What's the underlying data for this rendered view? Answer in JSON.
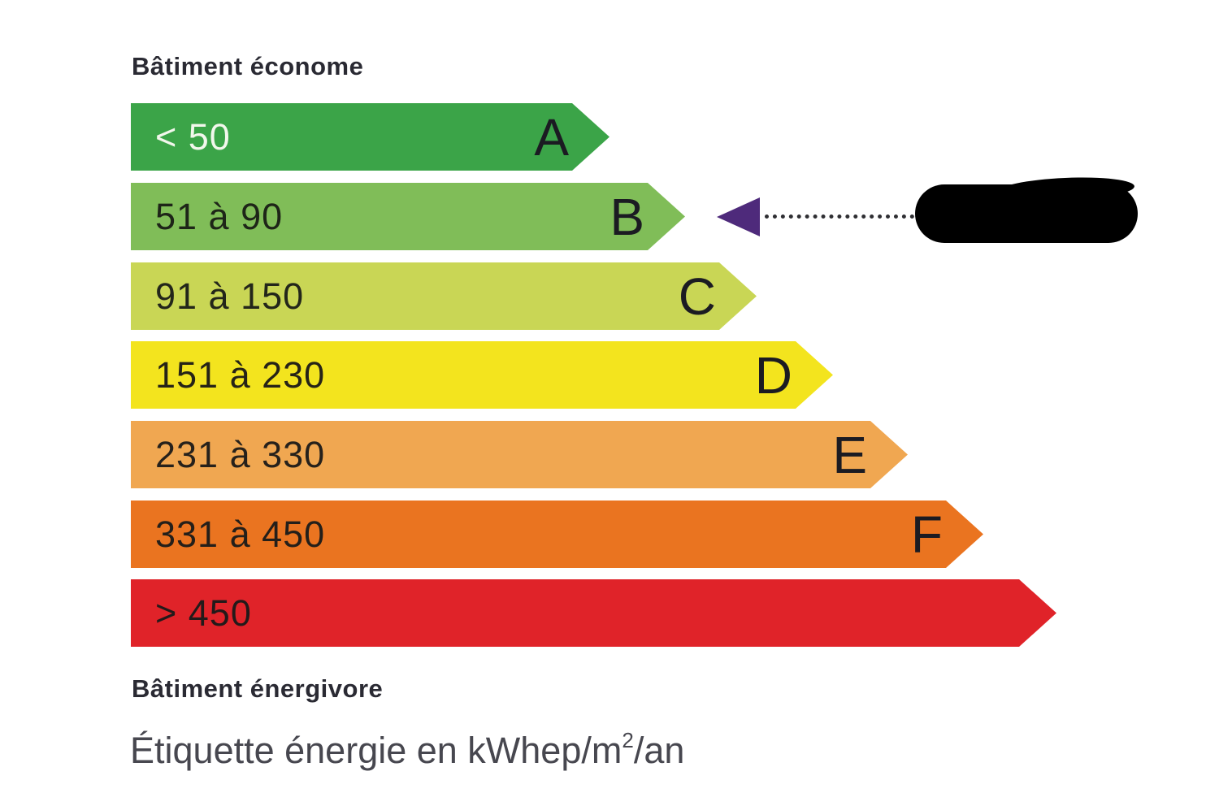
{
  "labels": {
    "top": "Bâtiment économe",
    "bottom": "Bâtiment énergivore",
    "caption_prefix": "Étiquette énergie en kWhep/m",
    "caption_sup": "2",
    "caption_suffix": "/an"
  },
  "scale": {
    "bars": [
      {
        "letter": "A",
        "range": "< 50",
        "color": "#3BA448",
        "text_color": "#F2F7EC"
      },
      {
        "letter": "B",
        "range": "51 à 90",
        "color": "#80BD58",
        "text_color": "#1E2518"
      },
      {
        "letter": "C",
        "range": "91 à 150",
        "color": "#C9D655",
        "text_color": "#23261A"
      },
      {
        "letter": "D",
        "range": "151 à 230",
        "color": "#F3E41E",
        "text_color": "#262317"
      },
      {
        "letter": "E",
        "range": "231 à 330",
        "color": "#F0A751",
        "text_color": "#26211B"
      },
      {
        "letter": "F",
        "range": "331 à 450",
        "color": "#EA7420",
        "text_color": "#241F1A"
      },
      {
        "letter": "",
        "range": "> 450",
        "color": "#E02329",
        "text_color": "#231A1A"
      }
    ]
  },
  "indicator": {
    "arrow_color": "#4E2A7B",
    "arrow_direction": "left",
    "points_to_range": "51 à 90",
    "value_redacted": true
  },
  "chart_data": {
    "type": "bar",
    "orientation": "horizontal",
    "title": "Étiquette énergie en kWhep/m²/an",
    "top_label": "Bâtiment économe",
    "bottom_label": "Bâtiment énergivore",
    "unit": "kWhep/m²/an",
    "grid": false,
    "legend_position": "none",
    "rows": [
      {
        "class_letter": "A",
        "range_label": "< 50",
        "range_min": null,
        "range_max": 50,
        "color": "#3BA448"
      },
      {
        "class_letter": "B",
        "range_label": "51 à 90",
        "range_min": 51,
        "range_max": 90,
        "color": "#80BD58"
      },
      {
        "class_letter": "C",
        "range_label": "91 à 150",
        "range_min": 91,
        "range_max": 150,
        "color": "#C9D655"
      },
      {
        "class_letter": "D",
        "range_label": "151 à 230",
        "range_min": 151,
        "range_max": 230,
        "color": "#F3E41E"
      },
      {
        "class_letter": "E",
        "range_label": "231 à 330",
        "range_min": 231,
        "range_max": 330,
        "color": "#F0A751"
      },
      {
        "class_letter": "F",
        "range_label": "331 à 450",
        "range_min": 331,
        "range_max": 450,
        "color": "#EA7420"
      },
      {
        "class_letter": "",
        "range_label": "> 450",
        "range_min": 450,
        "range_max": null,
        "color": "#E02329"
      }
    ],
    "annotations": [
      {
        "type": "arrow-indicator",
        "points_to_range": "51 à 90",
        "value": "redacted-black-blob"
      }
    ]
  }
}
